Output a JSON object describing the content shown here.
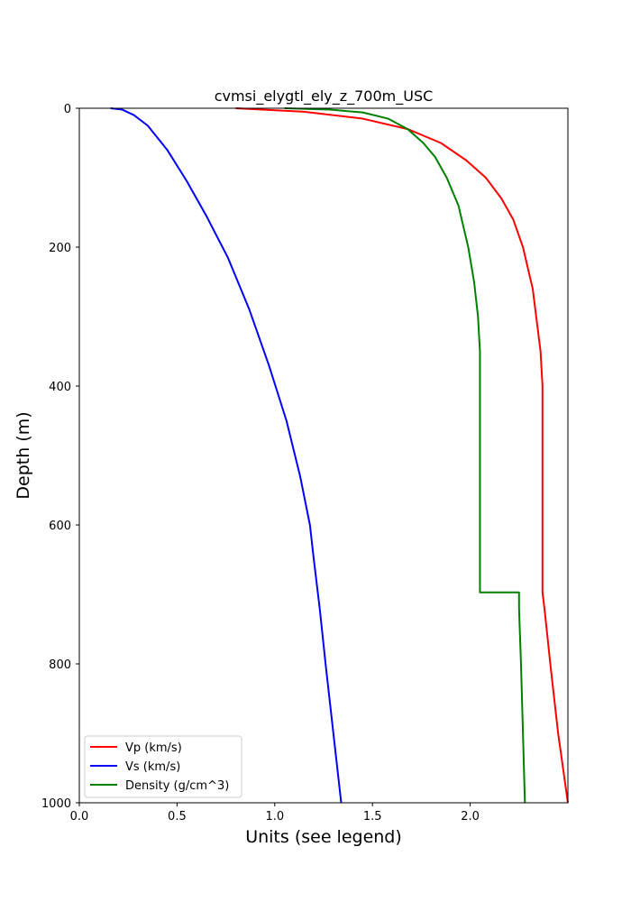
{
  "chart_data": {
    "type": "line",
    "title": "cvmsi_elygtl_ely_z_700m_USC",
    "xlabel": "Units (see legend)",
    "ylabel": "Depth (m)",
    "xlim": [
      0,
      2.5
    ],
    "ylim": [
      1000,
      0
    ],
    "y_inverted": true,
    "xticks": [
      "0.0",
      "0.5",
      "1.0",
      "1.5",
      "2.0"
    ],
    "yticks": [
      "0",
      "200",
      "400",
      "600",
      "800",
      "1000"
    ],
    "grid": false,
    "legend_position": "lower-left",
    "series": [
      {
        "name": "Vp (km/s)",
        "color": "#ff0000",
        "x": [
          0.8,
          1.15,
          1.45,
          1.68,
          1.85,
          1.98,
          2.08,
          2.16,
          2.22,
          2.27,
          2.32,
          2.36,
          2.37,
          2.37,
          2.37,
          2.37,
          2.37,
          2.37,
          2.37,
          2.38,
          2.41,
          2.45,
          2.5
        ],
        "y": [
          0,
          5,
          15,
          30,
          50,
          75,
          100,
          130,
          160,
          200,
          260,
          350,
          400,
          450,
          500,
          550,
          600,
          650,
          697,
          720,
          800,
          900,
          1000
        ]
      },
      {
        "name": "Vs (km/s)",
        "color": "#0000ff",
        "x": [
          0.16,
          0.22,
          0.28,
          0.35,
          0.45,
          0.55,
          0.65,
          0.76,
          0.87,
          0.97,
          1.06,
          1.13,
          1.18,
          1.2,
          1.23,
          1.26,
          1.3,
          1.34
        ],
        "y": [
          0,
          2,
          10,
          25,
          60,
          105,
          155,
          215,
          290,
          370,
          450,
          530,
          600,
          650,
          720,
          800,
          900,
          1000
        ]
      },
      {
        "name": "Density (g/cm^3)",
        "color": "#008000",
        "x": [
          1.05,
          1.28,
          1.45,
          1.58,
          1.68,
          1.76,
          1.82,
          1.88,
          1.94,
          1.99,
          2.02,
          2.04,
          2.05,
          2.05,
          2.05,
          2.05,
          2.05,
          2.25,
          2.25,
          2.26,
          2.27,
          2.28
        ],
        "y": [
          0,
          2,
          6,
          15,
          30,
          50,
          70,
          100,
          140,
          200,
          250,
          300,
          350,
          400,
          500,
          600,
          697,
          697,
          720,
          800,
          900,
          1000
        ]
      }
    ]
  }
}
